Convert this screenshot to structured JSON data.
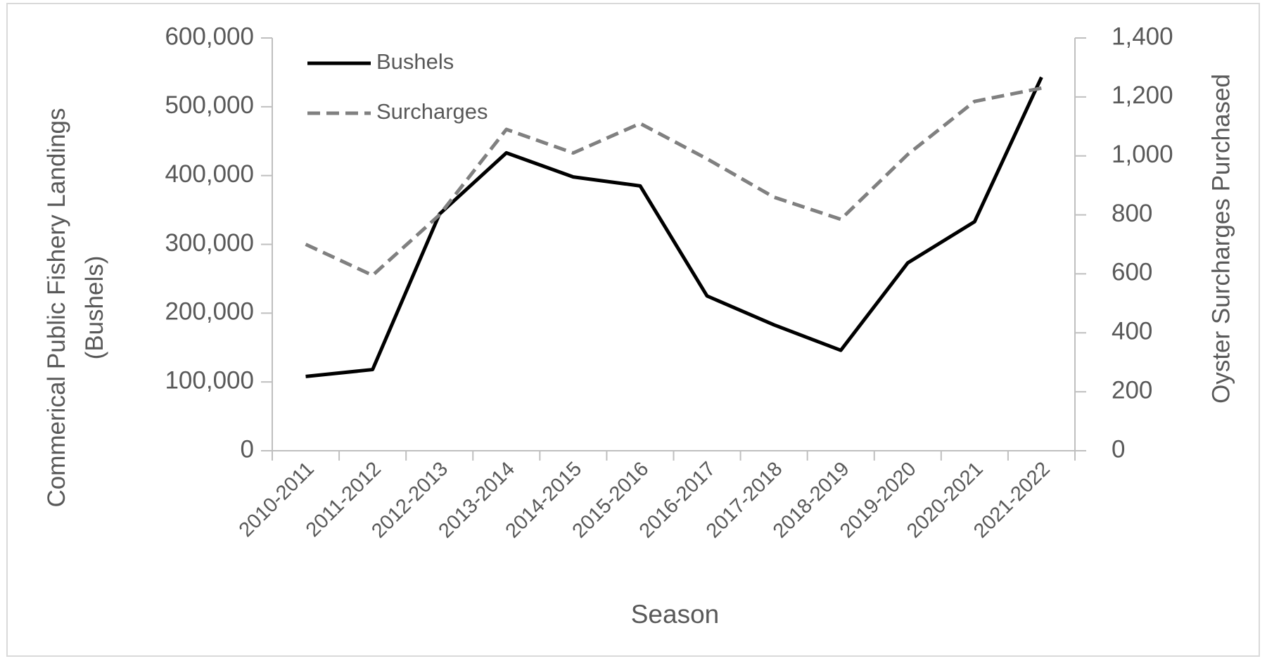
{
  "chart_data": {
    "type": "line",
    "ylabel": [
      "Commerical Public Fishery Landings",
      "(Bushels)"
    ],
    "y2label": "Oyster Surcharges Purchased",
    "xlabel": "Season",
    "categories": [
      "2010-2011",
      "2011-2012",
      "2012-2013",
      "2013-2014",
      "2014-2015",
      "2015-2016",
      "2016-2017",
      "2017-2018",
      "2018-2019",
      "2019-2020",
      "2020-2021",
      "2021-2022"
    ],
    "series": [
      {
        "name": "Bushels",
        "color": "#000000",
        "dash": false,
        "values": [
          108000,
          118000,
          344000,
          433000,
          398000,
          385000,
          225000,
          183000,
          146000,
          273000,
          333000,
          543000
        ]
      },
      {
        "name": "Surcharges",
        "color": "#808080",
        "dash": true,
        "axis": "y2",
        "values": [
          700,
          595,
          800,
          1090,
          1010,
          1110,
          990,
          860,
          785,
          1005,
          1185,
          1230
        ]
      }
    ],
    "ylim": [
      0,
      600000
    ],
    "yticks": [
      0,
      {
        "value": 100000,
        "label": "100,000"
      },
      {
        "value": 200000,
        "label": "200,000"
      },
      {
        "value": 300000,
        "label": "300,000"
      },
      {
        "value": 400000,
        "label": "400,000"
      },
      {
        "value": 500000,
        "label": "500,000"
      },
      {
        "value": 600000,
        "label": "600,000"
      }
    ],
    "y2lim": [
      0,
      1400
    ],
    "y2ticks": [
      0,
      200,
      400,
      600,
      800,
      {
        "value": 1000,
        "label": "1,000"
      },
      {
        "value": 1200,
        "label": "1,200"
      },
      {
        "value": 1400,
        "label": "1,400"
      }
    ],
    "legend": "upper-left"
  }
}
